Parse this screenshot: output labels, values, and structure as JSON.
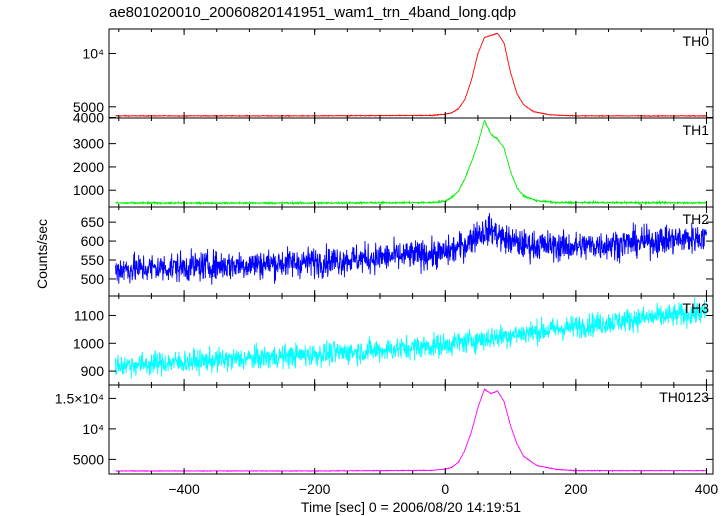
{
  "chart_data": {
    "type": "line",
    "title": "ae801020010_20060820141951_wam1_trn_4band_long.qdp",
    "xlabel": "Time [sec] 0 = 2006/08/20 14:19:51",
    "ylabel": "Counts/sec",
    "xlim": [
      -515,
      410
    ],
    "x_ticks": [
      {
        "value": -400,
        "label": "−400"
      },
      {
        "value": -200,
        "label": "−200"
      },
      {
        "value": 0,
        "label": "0"
      },
      {
        "value": 200,
        "label": "200"
      },
      {
        "value": 400,
        "label": "400"
      }
    ],
    "series": [
      {
        "name": "TH0",
        "color": "#ff0000",
        "ylim": [
          3950,
          12300
        ],
        "y_ticks": [
          {
            "value": 4000,
            "label": "4000"
          },
          {
            "value": 5000,
            "label": "5000"
          },
          {
            "value": 10000,
            "label": "10⁴"
          }
        ],
        "noise": 25,
        "profile": [
          [
            -505,
            4150
          ],
          [
            -200,
            4150
          ],
          [
            -20,
            4200
          ],
          [
            0,
            4300
          ],
          [
            10,
            4450
          ],
          [
            20,
            4800
          ],
          [
            30,
            5700
          ],
          [
            40,
            7500
          ],
          [
            50,
            10000
          ],
          [
            60,
            11500
          ],
          [
            70,
            11700
          ],
          [
            80,
            11900
          ],
          [
            90,
            11000
          ],
          [
            100,
            8200
          ],
          [
            110,
            6200
          ],
          [
            120,
            5200
          ],
          [
            135,
            4550
          ],
          [
            160,
            4250
          ],
          [
            200,
            4150
          ],
          [
            400,
            4150
          ]
        ]
      },
      {
        "name": "TH1",
        "color": "#00ee00",
        "ylim": [
          280,
          4100
        ],
        "y_ticks": [
          {
            "value": 1000,
            "label": "1000"
          },
          {
            "value": 2000,
            "label": "2000"
          },
          {
            "value": 3000,
            "label": "3000"
          }
        ],
        "noise": 25,
        "profile": [
          [
            -505,
            450
          ],
          [
            -200,
            450
          ],
          [
            -20,
            470
          ],
          [
            0,
            530
          ],
          [
            10,
            700
          ],
          [
            20,
            950
          ],
          [
            30,
            1500
          ],
          [
            40,
            2200
          ],
          [
            50,
            3000
          ],
          [
            60,
            4000
          ],
          [
            70,
            3400
          ],
          [
            80,
            3200
          ],
          [
            90,
            2800
          ],
          [
            100,
            1800
          ],
          [
            110,
            1100
          ],
          [
            120,
            750
          ],
          [
            140,
            550
          ],
          [
            170,
            470
          ],
          [
            400,
            460
          ]
        ]
      },
      {
        "name": "TH2",
        "color": "#0000ff",
        "ylim": [
          455,
          690
        ],
        "y_ticks": [
          {
            "value": 500,
            "label": "500"
          },
          {
            "value": 550,
            "label": "550"
          },
          {
            "value": 600,
            "label": "600"
          },
          {
            "value": 650,
            "label": "650"
          }
        ],
        "noise": 28,
        "profile": [
          [
            -505,
            525
          ],
          [
            -200,
            545
          ],
          [
            0,
            568
          ],
          [
            30,
            590
          ],
          [
            50,
            620
          ],
          [
            70,
            630
          ],
          [
            90,
            605
          ],
          [
            120,
            590
          ],
          [
            200,
            585
          ],
          [
            400,
            610
          ]
        ]
      },
      {
        "name": "TH3",
        "color": "#00ffff",
        "ylim": [
          850,
          1170
        ],
        "y_ticks": [
          {
            "value": 900,
            "label": "900"
          },
          {
            "value": 1000,
            "label": "1000"
          },
          {
            "value": 1100,
            "label": "1100"
          }
        ],
        "noise": 30,
        "profile": [
          [
            -505,
            920
          ],
          [
            -300,
            945
          ],
          [
            -100,
            975
          ],
          [
            0,
            995
          ],
          [
            100,
            1030
          ],
          [
            200,
            1060
          ],
          [
            300,
            1090
          ],
          [
            400,
            1110
          ]
        ]
      },
      {
        "name": "TH0123",
        "color": "#ff00ff",
        "ylim": [
          2600,
          17200
        ],
        "y_ticks": [
          {
            "value": 5000,
            "label": "5000"
          },
          {
            "value": 10000,
            "label": "10⁴"
          },
          {
            "value": 15000,
            "label": "1.5×10⁴"
          }
        ],
        "noise": 40,
        "profile": [
          [
            -505,
            3100
          ],
          [
            -200,
            3100
          ],
          [
            -20,
            3200
          ],
          [
            0,
            3400
          ],
          [
            10,
            3700
          ],
          [
            20,
            4500
          ],
          [
            30,
            6500
          ],
          [
            40,
            9500
          ],
          [
            50,
            13500
          ],
          [
            60,
            16500
          ],
          [
            70,
            15800
          ],
          [
            80,
            16200
          ],
          [
            90,
            14500
          ],
          [
            100,
            10500
          ],
          [
            110,
            7500
          ],
          [
            120,
            5500
          ],
          [
            140,
            4000
          ],
          [
            170,
            3350
          ],
          [
            200,
            3150
          ],
          [
            400,
            3150
          ]
        ]
      }
    ]
  }
}
